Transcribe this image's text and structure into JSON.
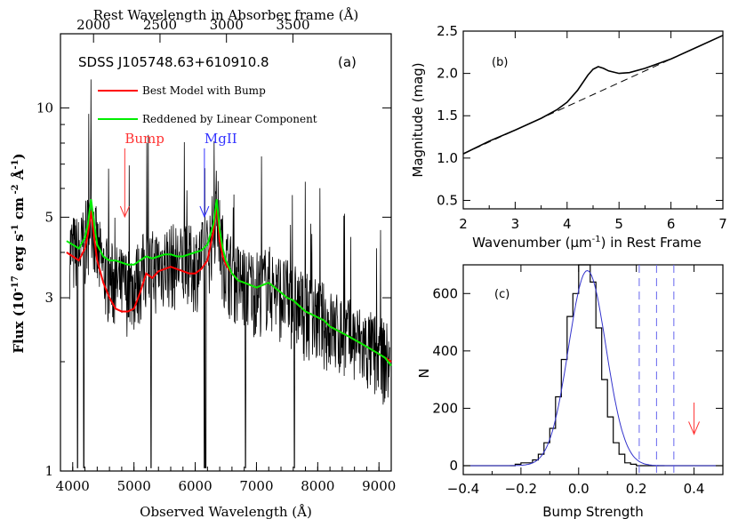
{
  "chart_data": [
    {
      "panel_label": "(a)",
      "type": "line",
      "object_name": "SDSS J105748.63+610910.8",
      "xlabel": "Observed Wavelength (Å)",
      "x2label": "Rest Wavelength in Absorber frame (Å)",
      "ylabel": "Flux (10",
      "ylabel_exp1": "-17",
      "ylabel_mid": " erg s",
      "ylabel_exp2": "-1",
      "ylabel_mid2": " cm",
      "ylabel_exp3": " -2",
      "ylabel_mid3": " Å",
      "ylabel_exp4": "-1",
      "ylabel_end": ")",
      "yscale": "log",
      "xlim": [
        3800,
        9200
      ],
      "ylim": [
        1,
        16
      ],
      "x_ticks": [
        4000,
        5000,
        6000,
        7000,
        8000,
        9000
      ],
      "x_tick_labels": [
        "4000",
        "5000",
        "6000",
        "7000",
        "8000",
        "9000"
      ],
      "x2_ticks": [
        2000,
        2500,
        3000,
        3500
      ],
      "x2_tick_labels": [
        "2000",
        "2500",
        "3000",
        "3500"
      ],
      "y_ticks": [
        1,
        3,
        5,
        10
      ],
      "y_tick_labels": [
        "1",
        "3",
        "5",
        "10"
      ],
      "legend": [
        {
          "name": "Best Model with Bump",
          "color": "#ff0000"
        },
        {
          "name": "Reddened by Linear Component",
          "color": "#00ee00"
        }
      ],
      "annotations": [
        {
          "text": "Bump",
          "x": 4850,
          "color": "#ff3333"
        },
        {
          "text": "MgII",
          "x": 6150,
          "color": "#3333ff"
        }
      ],
      "series": [
        {
          "name": "Best Model with Bump",
          "color": "#ff0000",
          "x": [
            3900,
            4000,
            4100,
            4200,
            4250,
            4300,
            4350,
            4400,
            4500,
            4600,
            4700,
            4800,
            4900,
            5000,
            5100,
            5200,
            5300,
            5400,
            5500,
            5600,
            5700,
            5800,
            5900,
            6000,
            6100,
            6200,
            6300,
            6350,
            6400,
            6450,
            6500,
            6600,
            6700,
            6800,
            6900,
            7000,
            7100,
            7200,
            7300,
            7400,
            7500,
            7600,
            7700,
            7800,
            7900,
            8000,
            8100,
            8200,
            8300,
            8400,
            8500,
            8600,
            8700,
            8800,
            8900,
            9000,
            9100,
            9200
          ],
          "y": [
            4.0,
            3.9,
            3.8,
            4.1,
            4.5,
            5.2,
            4.4,
            3.8,
            3.3,
            3.0,
            2.8,
            2.75,
            2.75,
            2.8,
            3.1,
            3.5,
            3.4,
            3.55,
            3.6,
            3.65,
            3.6,
            3.55,
            3.5,
            3.5,
            3.6,
            3.8,
            4.6,
            5.4,
            4.3,
            3.9,
            3.7,
            3.5,
            3.35,
            3.3,
            3.25,
            3.2,
            3.25,
            3.3,
            3.2,
            3.1,
            3.0,
            2.95,
            2.85,
            2.75,
            2.7,
            2.65,
            2.6,
            2.5,
            2.45,
            2.4,
            2.35,
            2.3,
            2.25,
            2.2,
            2.15,
            2.1,
            2.05,
            2.0
          ]
        },
        {
          "name": "Reddened by Linear Component",
          "color": "#00ee00",
          "x": [
            3900,
            4000,
            4100,
            4200,
            4250,
            4300,
            4350,
            4400,
            4500,
            4600,
            4700,
            4800,
            4900,
            5000,
            5100,
            5200,
            5300,
            5400,
            5500,
            5600,
            5700,
            5800,
            5900,
            6000,
            6100,
            6200,
            6300,
            6350,
            6400,
            6450,
            6500,
            6600,
            6700,
            6800,
            6900,
            7000,
            7100,
            7200,
            7300,
            7400,
            7500,
            7600,
            7700,
            7800,
            7900,
            8000,
            8100,
            8200,
            8300,
            8400,
            8500,
            8600,
            8700,
            8800,
            8900,
            9000,
            9100,
            9200
          ],
          "y": [
            4.3,
            4.2,
            4.1,
            4.4,
            4.8,
            5.6,
            4.8,
            4.2,
            3.9,
            3.8,
            3.8,
            3.75,
            3.7,
            3.7,
            3.8,
            3.9,
            3.85,
            3.9,
            3.95,
            3.95,
            3.9,
            3.9,
            3.95,
            4.0,
            4.05,
            4.2,
            4.8,
            5.6,
            4.6,
            4.1,
            3.8,
            3.5,
            3.35,
            3.3,
            3.25,
            3.2,
            3.25,
            3.3,
            3.2,
            3.1,
            3.0,
            2.95,
            2.85,
            2.75,
            2.7,
            2.65,
            2.6,
            2.5,
            2.45,
            2.4,
            2.35,
            2.3,
            2.25,
            2.2,
            2.15,
            2.1,
            2.05,
            1.95
          ]
        }
      ]
    },
    {
      "panel_label": "(b)",
      "type": "line",
      "xlabel": "Wavenumber (μm",
      "xlabel_exp": "-1",
      "xlabel_end": ") in Rest Frame",
      "ylabel": "Magnitude (mag)",
      "xlim": [
        2,
        7
      ],
      "ylim": [
        0.4,
        2.5
      ],
      "x_ticks": [
        2,
        3,
        4,
        5,
        6,
        7
      ],
      "x_tick_labels": [
        "2",
        "3",
        "4",
        "5",
        "6",
        "7"
      ],
      "y_ticks": [
        0.5,
        1.0,
        1.5,
        2.0,
        2.5
      ],
      "y_tick_labels": [
        "0.5",
        "1.0",
        "1.5",
        "2.0",
        "2.5"
      ],
      "series": [
        {
          "style": "solid",
          "x": [
            2.0,
            2.5,
            3.0,
            3.5,
            3.8,
            4.0,
            4.2,
            4.4,
            4.5,
            4.6,
            4.7,
            4.8,
            5.0,
            5.2,
            5.5,
            6.0,
            6.5,
            7.0
          ],
          "y": [
            1.05,
            1.2,
            1.33,
            1.47,
            1.57,
            1.66,
            1.8,
            1.98,
            2.05,
            2.08,
            2.06,
            2.03,
            2.0,
            2.01,
            2.06,
            2.17,
            2.31,
            2.45
          ]
        },
        {
          "style": "dashed",
          "x": [
            2.0,
            7.0
          ],
          "y": [
            1.05,
            2.45
          ]
        }
      ]
    },
    {
      "panel_label": "(c)",
      "type": "bar",
      "xlabel": "Bump Strength",
      "ylabel": "N",
      "xlim": [
        -0.4,
        0.5
      ],
      "ylim": [
        0,
        700
      ],
      "x_ticks": [
        -0.4,
        -0.2,
        0.0,
        0.2,
        0.4
      ],
      "x_tick_labels": [
        "−0.4",
        "−0.2",
        "0.0",
        "0.2",
        "0.4"
      ],
      "y_ticks": [
        0,
        200,
        400,
        600
      ],
      "y_tick_labels": [
        "0",
        "200",
        "400",
        "600"
      ],
      "histogram": {
        "edges": [
          -0.4,
          -0.38,
          -0.36,
          -0.34,
          -0.32,
          -0.3,
          -0.28,
          -0.26,
          -0.24,
          -0.22,
          -0.2,
          -0.18,
          -0.16,
          -0.14,
          -0.12,
          -0.1,
          -0.08,
          -0.06,
          -0.04,
          -0.02,
          0.0,
          0.02,
          0.04,
          0.06,
          0.08,
          0.1,
          0.12,
          0.14,
          0.16,
          0.18,
          0.2,
          0.22,
          0.24,
          0.26,
          0.28,
          0.3,
          0.32,
          0.34,
          0.36,
          0.38,
          0.4,
          0.42,
          0.44,
          0.46,
          0.48,
          0.5
        ],
        "counts": [
          0,
          0,
          0,
          0,
          0,
          0,
          0,
          0,
          0,
          5,
          10,
          10,
          20,
          40,
          80,
          130,
          240,
          370,
          520,
          600,
          700,
          700,
          640,
          480,
          300,
          170,
          80,
          40,
          10,
          5,
          0,
          0,
          0,
          0,
          0,
          0,
          0,
          0,
          0,
          0,
          0,
          0,
          0,
          0,
          0
        ]
      },
      "gaussian": {
        "color": "#3333cc",
        "mean": 0.03,
        "sigma": 0.065,
        "amplitude": 680
      },
      "vlines": {
        "x": [
          0.21,
          0.27,
          0.33
        ],
        "color": "#6666ee",
        "style": "dashed"
      },
      "arrow": {
        "x": 0.4,
        "y_top": 220,
        "y_bottom": 110,
        "color": "#ff3333"
      }
    }
  ]
}
